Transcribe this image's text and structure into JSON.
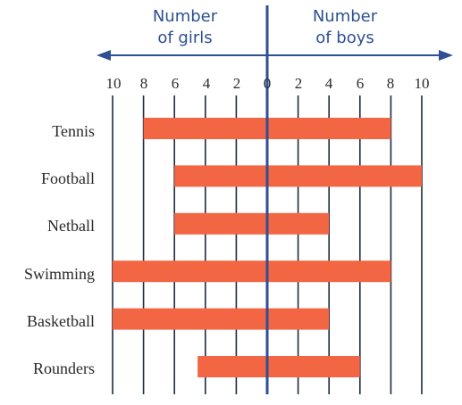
{
  "chart_data": {
    "type": "bar",
    "orientation": "horizontal",
    "style": "back-to-back",
    "headers": {
      "left": [
        "Number",
        "of girls"
      ],
      "right": [
        "Number",
        "of boys"
      ]
    },
    "tick_labels": {
      "left": [
        "10",
        "8",
        "6",
        "4",
        "2"
      ],
      "center": "0",
      "right": [
        "2",
        "4",
        "6",
        "8",
        "10"
      ]
    },
    "xlim": [
      -10,
      10
    ],
    "xticks": [
      -10,
      -8,
      -6,
      -4,
      -2,
      0,
      2,
      4,
      6,
      8,
      10
    ],
    "grid": true,
    "categories": [
      "Tennis",
      "Football",
      "Netball",
      "Swimming",
      "Basketball",
      "Rounders"
    ],
    "series": [
      {
        "name": "Number of girls",
        "values": [
          8,
          6,
          6,
          10,
          10,
          4.5
        ]
      },
      {
        "name": "Number of boys",
        "values": [
          8,
          10,
          4,
          8,
          4,
          6
        ]
      }
    ],
    "colors": {
      "bar": "#f26644",
      "axis": "#2e4f93",
      "header": "#2e4f93",
      "grid": "#1f2a40",
      "text": "#2a2a2a"
    }
  }
}
